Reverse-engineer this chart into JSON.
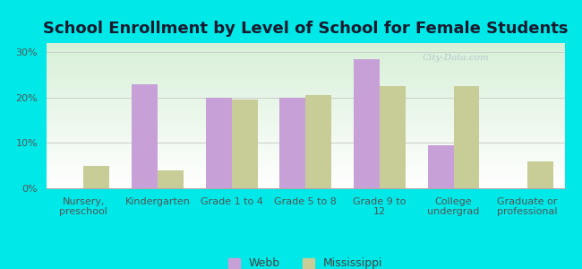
{
  "title": "School Enrollment by Level of School for Female Students",
  "categories": [
    "Nursery,\npreschool",
    "Kindergarten",
    "Grade 1 to 4",
    "Grade 5 to 8",
    "Grade 9 to\n12",
    "College\nundergrad",
    "Graduate or\nprofessional"
  ],
  "webb": [
    0,
    23,
    20,
    20,
    28.5,
    9.5,
    0
  ],
  "mississippi": [
    5,
    4,
    19.5,
    20.5,
    22.5,
    22.5,
    6
  ],
  "webb_color": "#c8a0d8",
  "mississippi_color": "#c8cc96",
  "background_outer": "#00e8e8",
  "background_inner_top": "#ffffff",
  "background_inner_bottom": "#d8f0d8",
  "ylim": [
    0,
    32
  ],
  "yticks": [
    0,
    10,
    20,
    30
  ],
  "ytick_labels": [
    "0%",
    "10%",
    "20%",
    "30%"
  ],
  "title_fontsize": 13,
  "tick_fontsize": 8,
  "legend_fontsize": 9,
  "bar_width": 0.35,
  "grid_color": "#cccccc",
  "title_color": "#1a1a2e"
}
